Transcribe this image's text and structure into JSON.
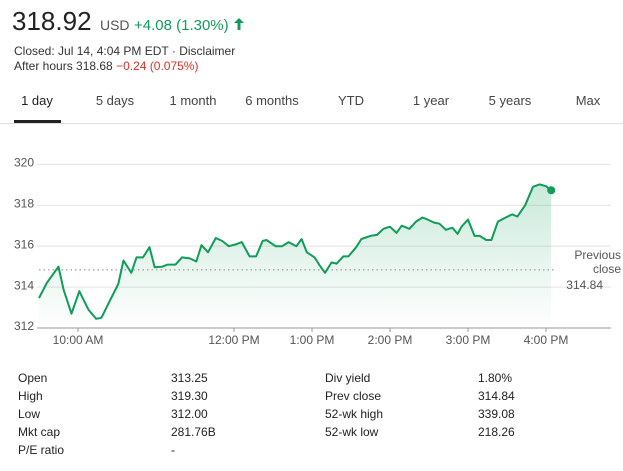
{
  "header": {
    "price": "318.92",
    "currency": "USD",
    "change": "+4.08 (1.30%)",
    "status": "Closed: Jul 14, 4:04 PM EDT ·",
    "disclaimer": "Disclaimer",
    "after_hours": "After hours 318.68",
    "after_hours_change": "−0.24 (0.075%)"
  },
  "tabs": [
    "1 day",
    "5 days",
    "1 month",
    "6 months",
    "YTD",
    "1 year",
    "5 years",
    "Max"
  ],
  "chart_data": {
    "type": "line",
    "color": "#0f9d58",
    "x": [
      570,
      576,
      585,
      589,
      595,
      601,
      608,
      614,
      618,
      625,
      631,
      635,
      641,
      645,
      650,
      655,
      659,
      665,
      669,
      675,
      680,
      686,
      691,
      695,
      700,
      706,
      711,
      716,
      722,
      726,
      732,
      737,
      742,
      745,
      752,
      757,
      762,
      768,
      772,
      776,
      782,
      786,
      790,
      795,
      799,
      804,
      808,
      814,
      818,
      825,
      830,
      835,
      840,
      845,
      849,
      855,
      860,
      865,
      869,
      874,
      878,
      883,
      888,
      892,
      895,
      900,
      905,
      909,
      914,
      918,
      923,
      929,
      934,
      938,
      944,
      950,
      955,
      960,
      964
    ],
    "values": [
      313.46,
      314.2,
      315.0,
      313.85,
      312.7,
      313.8,
      312.9,
      312.45,
      312.5,
      313.4,
      314.15,
      315.3,
      314.7,
      315.45,
      315.45,
      315.95,
      314.97,
      315.0,
      315.1,
      315.1,
      315.45,
      315.4,
      315.25,
      316.05,
      315.7,
      316.4,
      316.25,
      316.0,
      316.1,
      316.2,
      315.5,
      315.5,
      316.25,
      316.3,
      316.0,
      316.0,
      316.2,
      316.0,
      316.35,
      315.7,
      315.45,
      315.05,
      314.7,
      315.2,
      315.15,
      315.5,
      315.5,
      315.95,
      316.35,
      316.5,
      316.55,
      316.85,
      316.95,
      316.65,
      317.0,
      316.85,
      317.2,
      317.4,
      317.3,
      317.15,
      317.1,
      316.8,
      316.9,
      316.6,
      316.95,
      317.3,
      316.5,
      316.5,
      316.3,
      316.3,
      317.2,
      317.4,
      317.55,
      317.45,
      318.0,
      318.9,
      319.02,
      318.93,
      318.73
    ],
    "xlim": [
      570,
      1010
    ],
    "xticks": [
      {
        "value": 600,
        "label": "10:00 AM"
      },
      {
        "value": 720,
        "label": "12:00 PM"
      },
      {
        "value": 780,
        "label": "1:00 PM"
      },
      {
        "value": 840,
        "label": "2:00 PM"
      },
      {
        "value": 900,
        "label": "3:00 PM"
      },
      {
        "value": 960,
        "label": "4:00 PM"
      }
    ],
    "ylim": [
      312,
      320.7
    ],
    "yticks": [
      312,
      314,
      316,
      318,
      320
    ],
    "grid": true,
    "reference_label": "Previous close",
    "reference_value": 314.84
  },
  "stats": {
    "left": [
      [
        "Open",
        "313.25"
      ],
      [
        "High",
        "319.30"
      ],
      [
        "Low",
        "312.00"
      ],
      [
        "Mkt cap",
        "281.76B"
      ],
      [
        "P/E ratio",
        "-"
      ]
    ],
    "right": [
      [
        "Div yield",
        "1.80%"
      ],
      [
        "Prev close",
        "314.84"
      ],
      [
        "52-wk high",
        "339.08"
      ],
      [
        "52-wk low",
        "218.26"
      ]
    ]
  }
}
